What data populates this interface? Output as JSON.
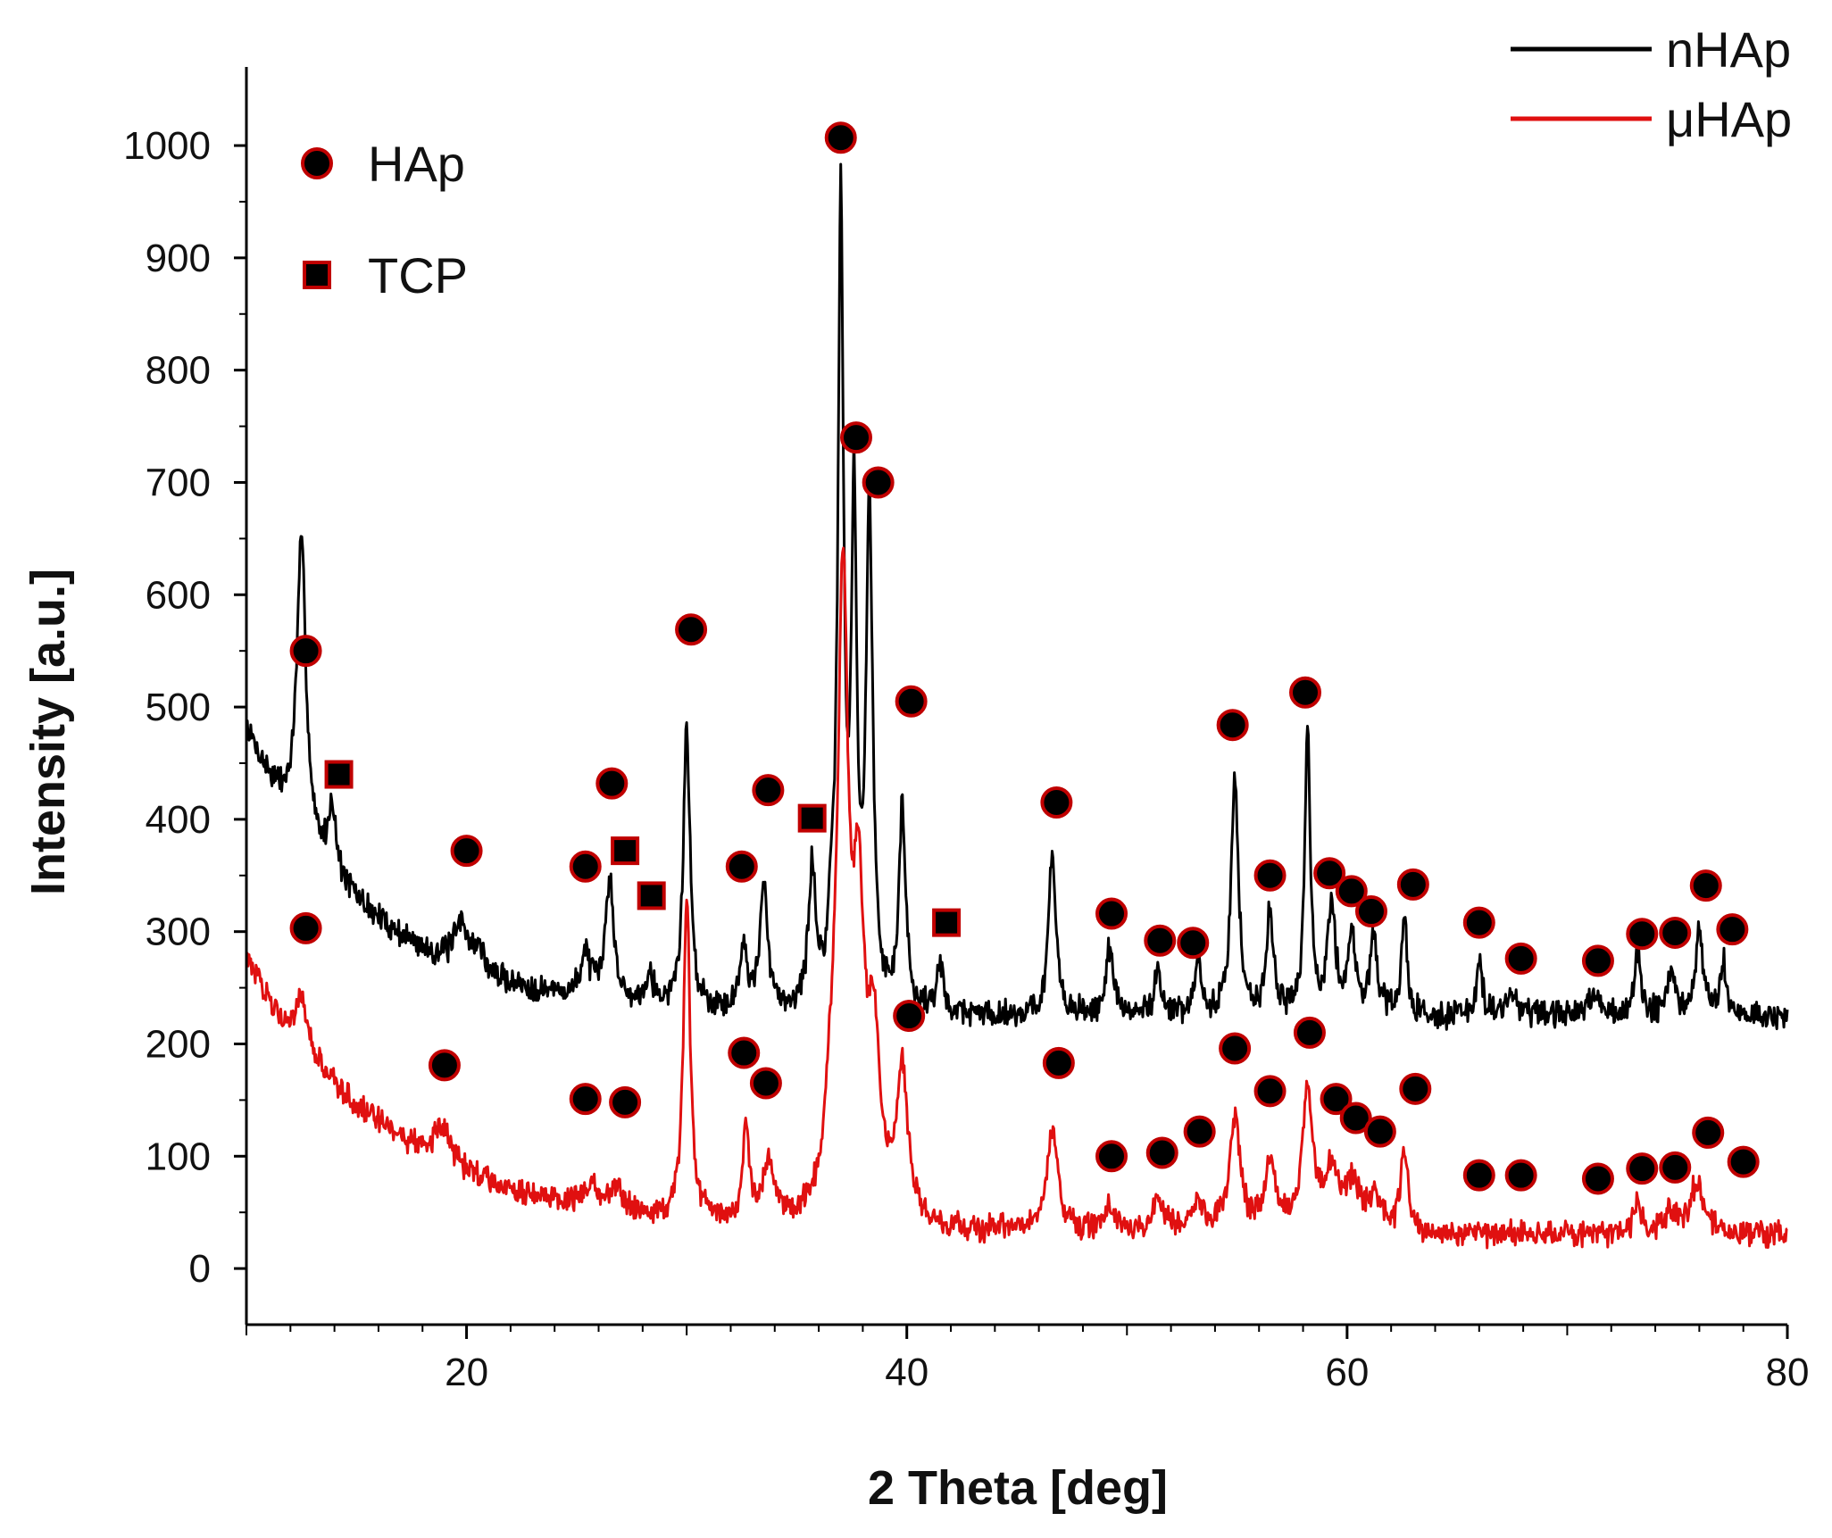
{
  "chart_data": {
    "type": "line",
    "title": "",
    "xlabel": "2 Theta [deg]",
    "ylabel": "Intensity [a.u.]",
    "xlim": [
      10,
      80
    ],
    "ylim": [
      -50,
      1070
    ],
    "xticks": [
      20,
      40,
      60,
      80
    ],
    "yticks": [
      0,
      100,
      200,
      300,
      400,
      500,
      600,
      700,
      800,
      900,
      1000
    ],
    "series": [
      {
        "name": "nHAp",
        "color": "#000000",
        "baseline": {
          "start": 480,
          "end": 222,
          "decay": 0.18,
          "floor": 224
        },
        "noise": 10,
        "peaks": [
          [
            12.5,
            260,
            0.25
          ],
          [
            13.9,
            60,
            0.2
          ],
          [
            19.8,
            40,
            0.4
          ],
          [
            20.6,
            20,
            0.2
          ],
          [
            25.4,
            40,
            0.25
          ],
          [
            26.5,
            110,
            0.22
          ],
          [
            28.3,
            30,
            0.2
          ],
          [
            30.0,
            250,
            0.18
          ],
          [
            32.6,
            60,
            0.18
          ],
          [
            33.5,
            110,
            0.2
          ],
          [
            35.7,
            120,
            0.2
          ],
          [
            36.6,
            50,
            0.2
          ],
          [
            37.0,
            710,
            0.15
          ],
          [
            37.6,
            430,
            0.15
          ],
          [
            38.3,
            440,
            0.18
          ],
          [
            39.8,
            180,
            0.18
          ],
          [
            41.5,
            40,
            0.2
          ],
          [
            46.6,
            140,
            0.2
          ],
          [
            49.2,
            60,
            0.2
          ],
          [
            51.4,
            40,
            0.2
          ],
          [
            53.2,
            50,
            0.15
          ],
          [
            54.9,
            210,
            0.2
          ],
          [
            56.5,
            90,
            0.2
          ],
          [
            58.2,
            250,
            0.15
          ],
          [
            59.3,
            100,
            0.2
          ],
          [
            60.2,
            70,
            0.2
          ],
          [
            61.2,
            70,
            0.2
          ],
          [
            62.6,
            90,
            0.15
          ],
          [
            66.0,
            50,
            0.15
          ],
          [
            67.5,
            20,
            0.3
          ],
          [
            71.3,
            20,
            0.3
          ],
          [
            73.2,
            60,
            0.15
          ],
          [
            74.7,
            40,
            0.2
          ],
          [
            76.0,
            80,
            0.2
          ],
          [
            77.1,
            50,
            0.15
          ]
        ]
      },
      {
        "name": "μHAp",
        "color": "#e01010",
        "baseline": {
          "start": 275,
          "end": 25,
          "decay": 0.15,
          "floor": 30
        },
        "noise": 9,
        "peaks": [
          [
            12.5,
            40,
            0.3
          ],
          [
            18.9,
            30,
            0.5
          ],
          [
            25.6,
            20,
            0.4
          ],
          [
            26.8,
            20,
            0.4
          ],
          [
            30.0,
            290,
            0.18
          ],
          [
            32.7,
            90,
            0.15
          ],
          [
            33.7,
            50,
            0.3
          ],
          [
            36.6,
            80,
            0.35
          ],
          [
            37.1,
            540,
            0.28
          ],
          [
            37.8,
            250,
            0.3
          ],
          [
            38.5,
            150,
            0.35
          ],
          [
            39.8,
            130,
            0.3
          ],
          [
            46.6,
            90,
            0.3
          ],
          [
            49.2,
            20,
            0.3
          ],
          [
            51.4,
            30,
            0.3
          ],
          [
            53.2,
            30,
            0.3
          ],
          [
            54.9,
            100,
            0.3
          ],
          [
            56.5,
            60,
            0.3
          ],
          [
            58.2,
            120,
            0.3
          ],
          [
            59.3,
            50,
            0.4
          ],
          [
            60.3,
            40,
            0.4
          ],
          [
            61.3,
            30,
            0.3
          ],
          [
            62.6,
            70,
            0.2
          ],
          [
            73.2,
            30,
            0.2
          ],
          [
            74.7,
            20,
            0.3
          ],
          [
            75.9,
            45,
            0.4
          ]
        ]
      }
    ],
    "markers": {
      "nHAp_HAp": [
        [
          12.7,
          550
        ],
        [
          20.0,
          372
        ],
        [
          25.4,
          358
        ],
        [
          26.6,
          432
        ],
        [
          30.2,
          569
        ],
        [
          32.5,
          358
        ],
        [
          33.7,
          426
        ],
        [
          37.0,
          1007
        ],
        [
          37.7,
          740
        ],
        [
          38.7,
          700
        ],
        [
          40.2,
          505
        ],
        [
          46.8,
          415
        ],
        [
          49.3,
          316
        ],
        [
          51.5,
          292
        ],
        [
          53.0,
          290
        ],
        [
          54.8,
          484
        ],
        [
          56.5,
          350
        ],
        [
          58.1,
          513
        ],
        [
          59.2,
          352
        ],
        [
          60.2,
          336
        ],
        [
          61.1,
          318
        ],
        [
          63.0,
          342
        ],
        [
          66.0,
          308
        ],
        [
          67.9,
          276
        ],
        [
          71.4,
          274
        ],
        [
          73.4,
          298
        ],
        [
          74.9,
          299
        ],
        [
          76.3,
          341
        ],
        [
          77.5,
          302
        ]
      ],
      "nHAp_TCP": [
        [
          14.2,
          440
        ],
        [
          27.2,
          372
        ],
        [
          28.4,
          332
        ],
        [
          35.7,
          401
        ],
        [
          41.8,
          308
        ]
      ],
      "uHAp_HAp": [
        [
          12.7,
          303
        ],
        [
          19.0,
          181
        ],
        [
          25.4,
          151
        ],
        [
          27.2,
          148
        ],
        [
          32.6,
          192
        ],
        [
          33.6,
          165
        ],
        [
          40.1,
          225
        ],
        [
          46.9,
          183
        ],
        [
          49.3,
          100
        ],
        [
          51.6,
          103
        ],
        [
          53.3,
          122
        ],
        [
          54.9,
          196
        ],
        [
          56.5,
          158
        ],
        [
          58.3,
          210
        ],
        [
          59.5,
          151
        ],
        [
          60.4,
          134
        ],
        [
          61.5,
          122
        ],
        [
          63.1,
          160
        ],
        [
          66.0,
          83
        ],
        [
          67.9,
          83
        ],
        [
          71.4,
          80
        ],
        [
          73.4,
          89
        ],
        [
          74.9,
          90
        ],
        [
          76.4,
          121
        ],
        [
          78.0,
          95
        ]
      ]
    },
    "legend": {
      "location": "top-right",
      "entries": [
        {
          "label": "nHAp",
          "color": "#000000"
        },
        {
          "label": "μHAp",
          "color": "#e01010"
        }
      ]
    },
    "symbol_legend": {
      "location": "top-left",
      "entries": [
        {
          "label": "HAp",
          "shape": "circle"
        },
        {
          "label": "TCP",
          "shape": "square"
        }
      ]
    }
  }
}
